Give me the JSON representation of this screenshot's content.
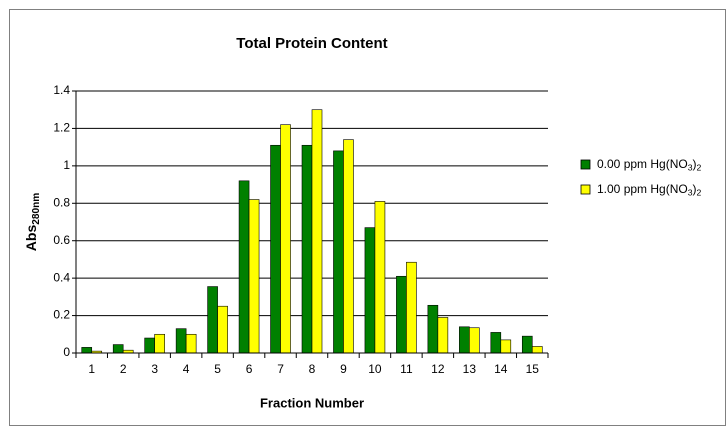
{
  "chart_data": {
    "type": "bar",
    "title": "Total Protein Content",
    "xlabel": "Fraction Number",
    "ylabel": "Abs280nm",
    "categories": [
      "1",
      "2",
      "3",
      "4",
      "5",
      "6",
      "7",
      "8",
      "9",
      "10",
      "11",
      "12",
      "13",
      "14",
      "15"
    ],
    "series": [
      {
        "name": "0.00 ppm Hg(NO3)2",
        "color": "#008000",
        "values": [
          0.03,
          0.045,
          0.08,
          0.13,
          0.355,
          0.92,
          1.11,
          1.11,
          1.08,
          0.67,
          0.41,
          0.255,
          0.14,
          0.11,
          0.09
        ]
      },
      {
        "name": "1.00 ppm Hg(NO3)2",
        "color": "#ffff00",
        "values": [
          0.01,
          0.015,
          0.1,
          0.1,
          0.25,
          0.82,
          1.22,
          1.3,
          1.14,
          0.81,
          0.485,
          0.19,
          0.135,
          0.07,
          0.035
        ]
      }
    ],
    "ylim": [
      0,
      1.4
    ],
    "yticks": [
      0,
      0.2,
      0.4,
      0.6,
      0.8,
      1,
      1.2,
      1.4
    ],
    "grid": true,
    "legend": "right"
  }
}
